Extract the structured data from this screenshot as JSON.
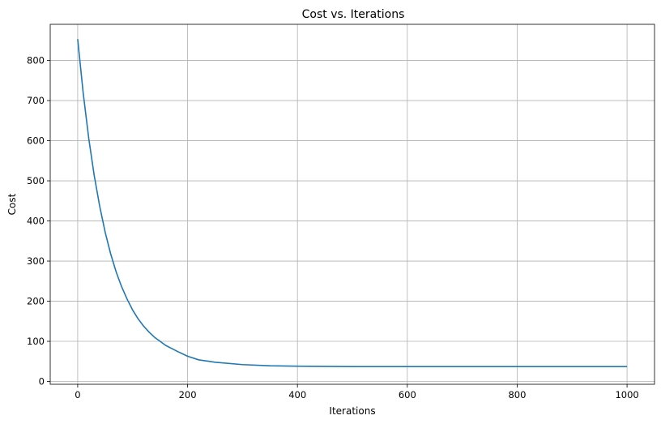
{
  "chart_data": {
    "type": "line",
    "title": "Cost vs. Iterations",
    "xlabel": "Iterations",
    "ylabel": "Cost",
    "xlim": [
      -50,
      1050
    ],
    "ylim": [
      -7,
      890
    ],
    "xticks": [
      0,
      200,
      400,
      600,
      800,
      1000
    ],
    "yticks": [
      0,
      100,
      200,
      300,
      400,
      500,
      600,
      700,
      800
    ],
    "grid": true,
    "line_color": "#1f77b4",
    "series": [
      {
        "x": [
          0,
          10,
          20,
          30,
          40,
          50,
          60,
          70,
          80,
          90,
          100,
          110,
          120,
          130,
          140,
          150,
          160,
          170,
          180,
          200,
          220,
          250,
          300,
          350,
          400,
          500,
          600,
          700,
          800,
          900,
          1000
        ],
        "values": [
          853,
          719,
          607,
          514,
          437,
          372,
          318,
          273,
          236,
          205,
          178,
          156,
          138,
          123,
          110,
          100,
          90,
          83,
          76,
          63,
          54,
          48,
          42,
          39,
          38,
          37,
          37,
          37,
          37,
          37,
          37
        ]
      }
    ]
  }
}
